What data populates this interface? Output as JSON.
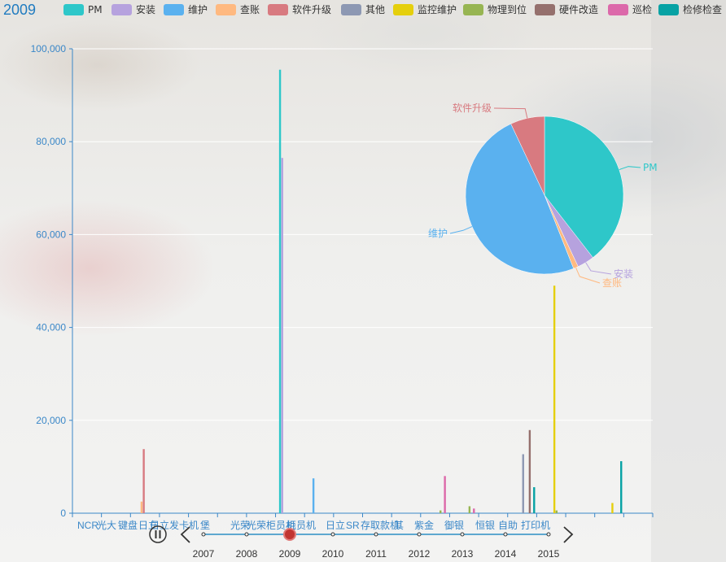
{
  "title": "2009",
  "colors": {
    "PM": "#2ec7c9",
    "安装": "#b6a2de",
    "维护": "#5ab1ef",
    "查账": "#ffb980",
    "软件升级": "#d87a80",
    "其他": "#8d98b3",
    "监控维护": "#e5cf0d",
    "物理到位": "#97b552",
    "硬件改造": "#95706d",
    "巡检": "#dc69aa",
    "检修检查": "#07a2a4"
  },
  "legend": [
    "PM",
    "安装",
    "维护",
    "查账",
    "软件升级",
    "其他",
    "监控维护",
    "物理到位",
    "硬件改造",
    "巡检",
    "检修检查"
  ],
  "timeline": {
    "years": [
      "2007",
      "2008",
      "2009",
      "2010",
      "2011",
      "2012",
      "2013",
      "2014",
      "2015"
    ],
    "current": "2009",
    "play_icon": "pause-icon",
    "prev_icon": "chevron-left-icon",
    "next_icon": "chevron-right-icon"
  },
  "chart_data": [
    {
      "type": "bar",
      "title": "2009",
      "ylim": [
        0,
        100000
      ],
      "yticks": [
        "0",
        "20,000",
        "40,000",
        "60,000",
        "80,000",
        "100,000"
      ],
      "categories": [
        "NCR",
        "光大",
        "键盘",
        "日立",
        "日立发卡机",
        "堡",
        "光荣",
        "光荣柜员机",
        "柜员机",
        "日立",
        "SR",
        "存取款机",
        "其",
        "紫金",
        "",
        "御银",
        "",
        "恒银",
        "自助",
        "打印机"
      ],
      "visible_category_labels": [
        "NCR",
        "光大",
        "键盘",
        "日立",
        "日立发卡机",
        "堡",
        "光荣",
        "光荣柜员机",
        "柜员机",
        "日立",
        "SR",
        "存取款机",
        "其",
        "紫金",
        "御银",
        "恒银",
        "自助",
        "打印机"
      ],
      "series": [
        {
          "name": "PM",
          "values": [
            0,
            0,
            0,
            0,
            0,
            0,
            0,
            95500,
            0,
            0,
            0,
            0,
            0,
            0,
            0,
            0,
            0,
            0,
            0,
            0
          ]
        },
        {
          "name": "安装",
          "values": [
            0,
            0,
            0,
            0,
            0,
            0,
            0,
            76500,
            0,
            0,
            0,
            0,
            0,
            0,
            0,
            0,
            0,
            0,
            0,
            0
          ]
        },
        {
          "name": "维护",
          "values": [
            0,
            0,
            0,
            0,
            0,
            0,
            0,
            0,
            7500,
            0,
            0,
            0,
            0,
            0,
            0,
            0,
            0,
            0,
            0,
            0
          ]
        },
        {
          "name": "查账",
          "values": [
            0,
            0,
            2500,
            0,
            0,
            0,
            0,
            0,
            0,
            0,
            0,
            0,
            0,
            0,
            0,
            0,
            0,
            0,
            0,
            0
          ]
        },
        {
          "name": "软件升级",
          "values": [
            0,
            0,
            13800,
            0,
            0,
            0,
            0,
            0,
            0,
            0,
            0,
            0,
            0,
            0,
            0,
            0,
            0,
            0,
            0,
            0
          ]
        },
        {
          "name": "其他",
          "values": [
            0,
            0,
            0,
            0,
            0,
            0,
            0,
            0,
            0,
            0,
            0,
            0,
            0,
            0,
            0,
            12700,
            0,
            0,
            0,
            0
          ]
        },
        {
          "name": "监控维护",
          "values": [
            0,
            0,
            0,
            0,
            0,
            0,
            0,
            0,
            0,
            0,
            0,
            0,
            0,
            0,
            0,
            0,
            49000,
            0,
            2200,
            0
          ]
        },
        {
          "name": "物理到位",
          "values": [
            0,
            0,
            0,
            0,
            0,
            0,
            0,
            0,
            0,
            0,
            0,
            0,
            600,
            1500,
            0,
            0,
            600,
            0,
            0,
            0
          ]
        },
        {
          "name": "硬件改造",
          "values": [
            0,
            0,
            0,
            0,
            0,
            0,
            0,
            0,
            0,
            0,
            0,
            0,
            0,
            0,
            0,
            17900,
            0,
            0,
            0,
            0
          ]
        },
        {
          "name": "巡检",
          "values": [
            0,
            0,
            0,
            0,
            0,
            0,
            0,
            0,
            0,
            0,
            0,
            0,
            8000,
            1000,
            0,
            0,
            0,
            0,
            0,
            0
          ]
        },
        {
          "name": "检修检查",
          "values": [
            0,
            0,
            0,
            0,
            0,
            0,
            0,
            0,
            0,
            0,
            0,
            0,
            0,
            0,
            0,
            5600,
            0,
            0,
            11200,
            0
          ]
        }
      ]
    },
    {
      "type": "pie",
      "slices": [
        {
          "name": "PM",
          "value": 39.5,
          "label": "PM"
        },
        {
          "name": "安装",
          "value": 3.5,
          "label": "安装"
        },
        {
          "name": "查账",
          "value": 1.0,
          "label": "查账"
        },
        {
          "name": "维护",
          "value": 49.0,
          "label": "维护"
        },
        {
          "name": "软件升级",
          "value": 7.0,
          "label": "软件升级"
        }
      ]
    }
  ]
}
